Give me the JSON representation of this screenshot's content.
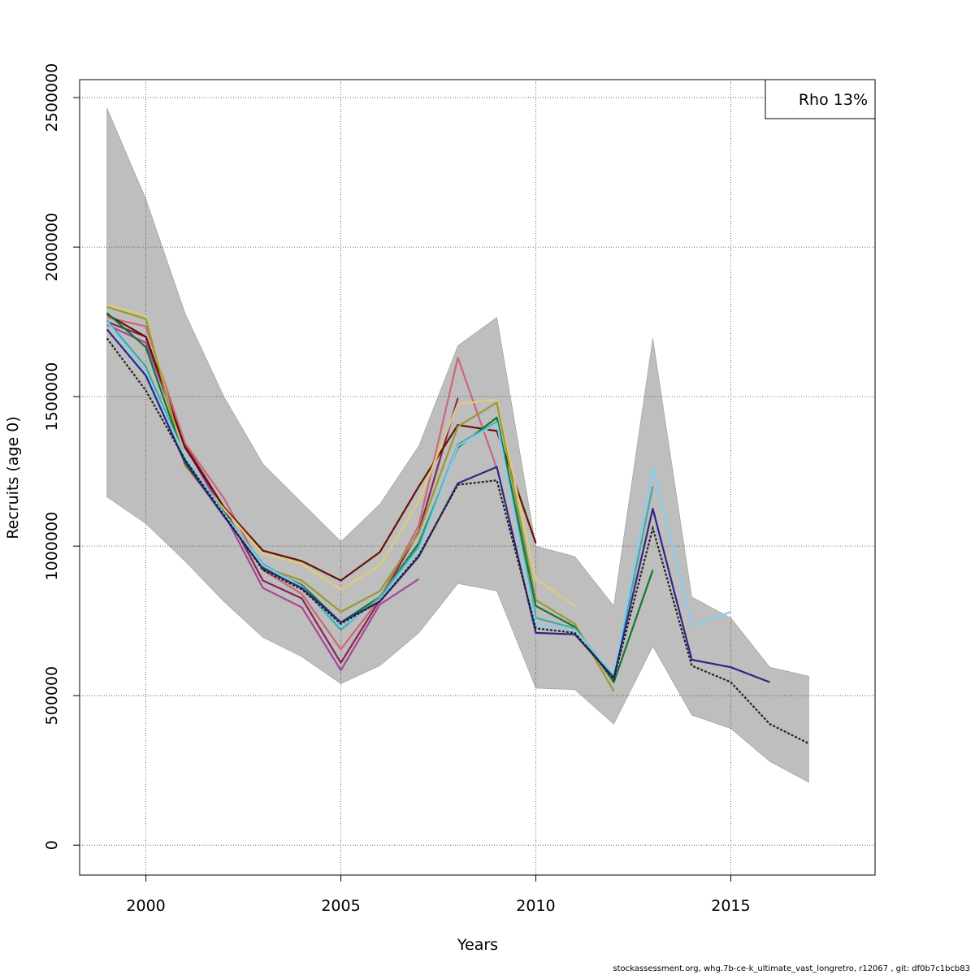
{
  "chart_data": {
    "type": "line",
    "title": "",
    "xlabel": "Years",
    "ylabel": "Recruits (age 0)",
    "xlim": [
      1998.3,
      2018.7
    ],
    "ylim": [
      -100000,
      2560000
    ],
    "x_ticks": [
      2000,
      2005,
      2010,
      2015
    ],
    "y_ticks": [
      0,
      500000,
      1000000,
      1500000,
      2000000,
      2500000
    ],
    "grid": true,
    "legend": {
      "text": "Rho 13%",
      "placement": "top-right"
    },
    "band_color": "#bebebe",
    "confidence_band": {
      "x": [
        1999,
        2000,
        2001,
        2002,
        2003,
        2004,
        2005,
        2006,
        2007,
        2008,
        2009,
        2010,
        2011,
        2012,
        2013,
        2014,
        2015,
        2016,
        2017
      ],
      "upper": [
        2465000,
        2160000,
        1780000,
        1500000,
        1275000,
        1145000,
        1015000,
        1140000,
        1335000,
        1670000,
        1765000,
        1000000,
        965000,
        800000,
        1695000,
        830000,
        760000,
        595000,
        565000
      ],
      "lower": [
        1165000,
        1075000,
        950000,
        815000,
        695000,
        630000,
        540000,
        600000,
        710000,
        875000,
        850000,
        525000,
        520000,
        405000,
        665000,
        435000,
        390000,
        280000,
        210000
      ]
    },
    "base": {
      "name": "",
      "color": "#222222",
      "x": [
        1999,
        2000,
        2001,
        2002,
        2003,
        2004,
        2005,
        2006,
        2007,
        2008,
        2009,
        2010,
        2011,
        2012,
        2013,
        2014,
        2015,
        2016,
        2017
      ],
      "values": [
        1695000,
        1520000,
        1290000,
        1105000,
        920000,
        855000,
        740000,
        815000,
        970000,
        1205000,
        1220000,
        725000,
        710000,
        555000,
        1060000,
        600000,
        545000,
        405000,
        340000
      ]
    },
    "series": [
      {
        "name": "",
        "color": "#2e2585",
        "x": [
          1999,
          2000,
          2001,
          2002,
          2003,
          2004,
          2005,
          2006,
          2007,
          2008,
          2009,
          2010,
          2011,
          2012,
          2013,
          2014,
          2015,
          2016
        ],
        "values": [
          1725000,
          1570000,
          1280000,
          1100000,
          925000,
          860000,
          745000,
          815000,
          965000,
          1210000,
          1265000,
          710000,
          705000,
          560000,
          1125000,
          620000,
          595000,
          545000
        ]
      },
      {
        "name": "",
        "color": "#88ccee",
        "x": [
          1999,
          2000,
          2001,
          2002,
          2003,
          2004,
          2005,
          2006,
          2007,
          2008,
          2009,
          2010,
          2011,
          2012,
          2013,
          2014,
          2015
        ],
        "values": [
          1750000,
          1580000,
          1300000,
          1110000,
          935000,
          865000,
          730000,
          820000,
          985000,
          1335000,
          1410000,
          740000,
          720000,
          570000,
          1265000,
          735000,
          780000
        ]
      },
      {
        "name": "",
        "color": "#44aa99",
        "x": [
          1999,
          2000,
          2001,
          2002,
          2003,
          2004,
          2005,
          2006,
          2007,
          2008,
          2009,
          2010,
          2011,
          2012,
          2013
        ],
        "values": [
          1755000,
          1600000,
          1300000,
          1110000,
          940000,
          865000,
          720000,
          830000,
          1000000,
          1340000,
          1415000,
          760000,
          725000,
          565000,
          1200000
        ]
      },
      {
        "name": "",
        "color": "#117733",
        "x": [
          1999,
          2000,
          2001,
          2002,
          2003,
          2004,
          2005,
          2006,
          2007,
          2008,
          2009,
          2010,
          2011,
          2012,
          2013
        ],
        "values": [
          1780000,
          1665000,
          1290000,
          1115000,
          930000,
          870000,
          745000,
          830000,
          1010000,
          1330000,
          1430000,
          800000,
          730000,
          545000,
          920000
        ]
      },
      {
        "name": "",
        "color": "#999933",
        "x": [
          1999,
          2000,
          2001,
          2002,
          2003,
          2004,
          2005,
          2006,
          2007,
          2008,
          2009,
          2010,
          2011,
          2012
        ],
        "values": [
          1800000,
          1760000,
          1270000,
          1110000,
          930000,
          885000,
          780000,
          850000,
          1045000,
          1400000,
          1480000,
          820000,
          740000,
          515000
        ]
      },
      {
        "name": "",
        "color": "#ddcc77",
        "x": [
          1999,
          2000,
          2001,
          2002,
          2003,
          2004,
          2005,
          2006,
          2007,
          2008,
          2009,
          2010,
          2011
        ],
        "values": [
          1805000,
          1770000,
          1275000,
          1125000,
          975000,
          940000,
          855000,
          935000,
          1150000,
          1475000,
          1490000,
          890000,
          800000
        ]
      },
      {
        "name": "",
        "color": "#661100",
        "x": [
          1999,
          2000,
          2001,
          2002,
          2003,
          2004,
          2005,
          2006,
          2007,
          2008,
          2009,
          2010
        ],
        "values": [
          1775000,
          1700000,
          1330000,
          1130000,
          985000,
          950000,
          885000,
          980000,
          1200000,
          1405000,
          1385000,
          1010000
        ]
      },
      {
        "name": "",
        "color": "#cc6677",
        "x": [
          1999,
          2000,
          2001,
          2002,
          2003,
          2004,
          2005,
          2006,
          2007,
          2008,
          2009
        ],
        "values": [
          1765000,
          1735000,
          1345000,
          1160000,
          920000,
          840000,
          655000,
          825000,
          1070000,
          1630000,
          1260000
        ]
      },
      {
        "name": "",
        "color": "#882255",
        "x": [
          1999,
          2000,
          2001,
          2002,
          2003,
          2004,
          2005,
          2006,
          2007,
          2008
        ],
        "values": [
          1750000,
          1700000,
          1340000,
          1130000,
          885000,
          825000,
          610000,
          820000,
          1050000,
          1495000
        ]
      },
      {
        "name": "",
        "color": "#aa4499",
        "x": [
          1999,
          2000,
          2001,
          2002,
          2003,
          2004,
          2005,
          2006,
          2007
        ],
        "values": [
          1740000,
          1680000,
          1335000,
          1110000,
          860000,
          795000,
          585000,
          805000,
          890000
        ]
      }
    ]
  },
  "footer": "stockassessment.org, whg.7b-ce-k_ultimate_vast_longretro, r12067 , git: df0b7c1bcb83"
}
